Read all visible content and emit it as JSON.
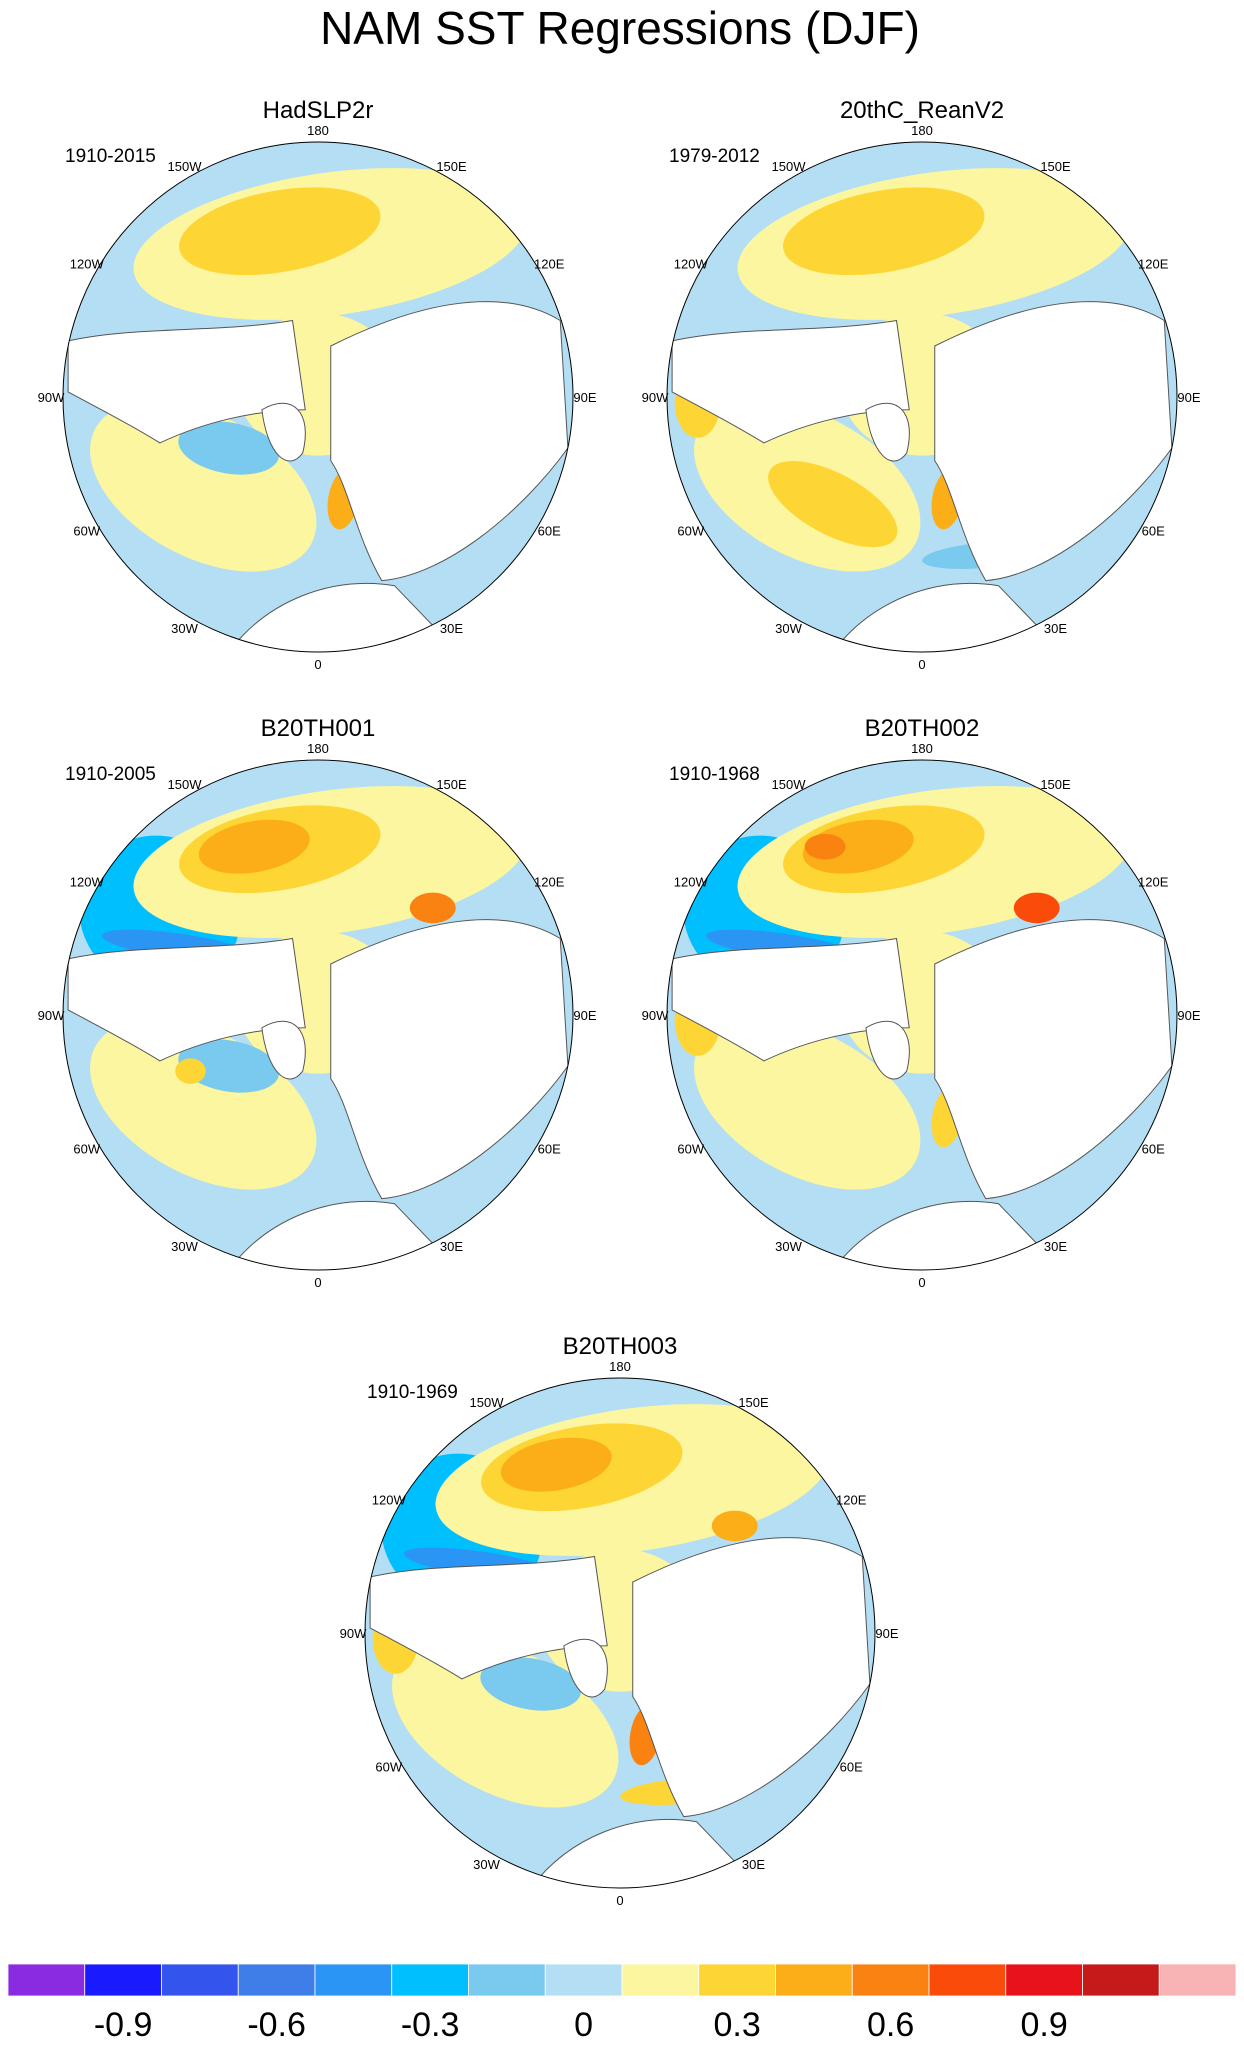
{
  "figure": {
    "title": "NAM SST Regressions (DJF)"
  },
  "colorbar": {
    "colors": [
      "#8a2be2",
      "#1a1aff",
      "#3355ee",
      "#3f7ee8",
      "#2b95f5",
      "#00bfff",
      "#7ac9ef",
      "#b4def3",
      "#fdf6a0",
      "#fdd635",
      "#fbae17",
      "#fa8210",
      "#fa4b0a",
      "#e8121a",
      "#c61a1a",
      "#f8b4b4"
    ],
    "tick_labels": [
      "-0.9",
      "-0.6",
      "-0.3",
      "0",
      "0.3",
      "0.6",
      "0.9"
    ]
  },
  "lon_labels": [
    "180",
    "150E",
    "120E",
    "90E",
    "60E",
    "30E",
    "0",
    "30W",
    "60W",
    "90W",
    "120W",
    "150W"
  ],
  "panels": [
    {
      "name": "panel-hadslp2r",
      "title": "HadSLP2r",
      "period": "1910-2015",
      "blobs": [
        {
          "region": "north-pacific",
          "level": 0.15
        },
        {
          "region": "north-pacific-core",
          "level": 0.3
        },
        {
          "region": "subtropical-atlantic",
          "level": 0.15
        },
        {
          "region": "arctic-ocean",
          "level": 0.15
        },
        {
          "region": "barents-sea",
          "level": 0.45
        },
        {
          "region": "labrador-sea",
          "level": -0.15
        }
      ]
    },
    {
      "name": "panel-20thc-reanv2",
      "title": "20thC_ReanV2",
      "period": "1979-2012",
      "blobs": [
        {
          "region": "north-pacific",
          "level": 0.15
        },
        {
          "region": "north-pacific-core",
          "level": 0.3
        },
        {
          "region": "subtropical-atlantic",
          "level": 0.15
        },
        {
          "region": "subtropical-atlantic-core",
          "level": 0.3
        },
        {
          "region": "east-pacific-coast",
          "level": 0.3
        },
        {
          "region": "arctic-ocean",
          "level": 0.15
        },
        {
          "region": "barents-sea",
          "level": 0.45
        },
        {
          "region": "caspian",
          "level": -0.3
        },
        {
          "region": "mediterranean",
          "level": -0.15
        }
      ]
    },
    {
      "name": "panel-b20th001",
      "title": "B20TH001",
      "period": "1910-2005",
      "blobs": [
        {
          "region": "west-pacific",
          "level": -0.3
        },
        {
          "region": "kuroshio",
          "level": -0.45
        },
        {
          "region": "north-pacific",
          "level": 0.15
        },
        {
          "region": "north-pacific-core",
          "level": 0.3
        },
        {
          "region": "north-pacific-peak",
          "level": 0.45
        },
        {
          "region": "okhotsk",
          "level": 0.6
        },
        {
          "region": "subtropical-atlantic",
          "level": 0.15
        },
        {
          "region": "arctic-ocean",
          "level": 0.15
        },
        {
          "region": "labrador-sea",
          "level": -0.15
        },
        {
          "region": "gulf-stream",
          "level": 0.3
        }
      ]
    },
    {
      "name": "panel-b20th002",
      "title": "B20TH002",
      "period": "1910-1968",
      "blobs": [
        {
          "region": "west-pacific",
          "level": -0.3
        },
        {
          "region": "kuroshio",
          "level": -0.45
        },
        {
          "region": "north-pacific",
          "level": 0.15
        },
        {
          "region": "north-pacific-core",
          "level": 0.3
        },
        {
          "region": "north-pacific-peak",
          "level": 0.45
        },
        {
          "region": "north-pacific-max",
          "level": 0.6
        },
        {
          "region": "okhotsk",
          "level": 0.75
        },
        {
          "region": "subtropical-atlantic",
          "level": 0.15
        },
        {
          "region": "east-pacific-coast",
          "level": 0.3
        },
        {
          "region": "arctic-ocean",
          "level": 0.15
        },
        {
          "region": "barents-sea",
          "level": 0.3
        }
      ]
    },
    {
      "name": "panel-b20th003",
      "title": "B20TH003",
      "period": "1910-1969",
      "blobs": [
        {
          "region": "west-pacific",
          "level": -0.3
        },
        {
          "region": "kuroshio",
          "level": -0.45
        },
        {
          "region": "north-pacific",
          "level": 0.15
        },
        {
          "region": "north-pacific-core",
          "level": 0.3
        },
        {
          "region": "north-pacific-peak",
          "level": 0.45
        },
        {
          "region": "okhotsk",
          "level": 0.45
        },
        {
          "region": "subtropical-atlantic",
          "level": 0.15
        },
        {
          "region": "east-pacific-coast",
          "level": 0.3
        },
        {
          "region": "arctic-ocean",
          "level": 0.15
        },
        {
          "region": "labrador-sea",
          "level": -0.15
        },
        {
          "region": "barents-sea",
          "level": 0.6
        },
        {
          "region": "mediterranean",
          "level": 0.3
        }
      ]
    }
  ]
}
